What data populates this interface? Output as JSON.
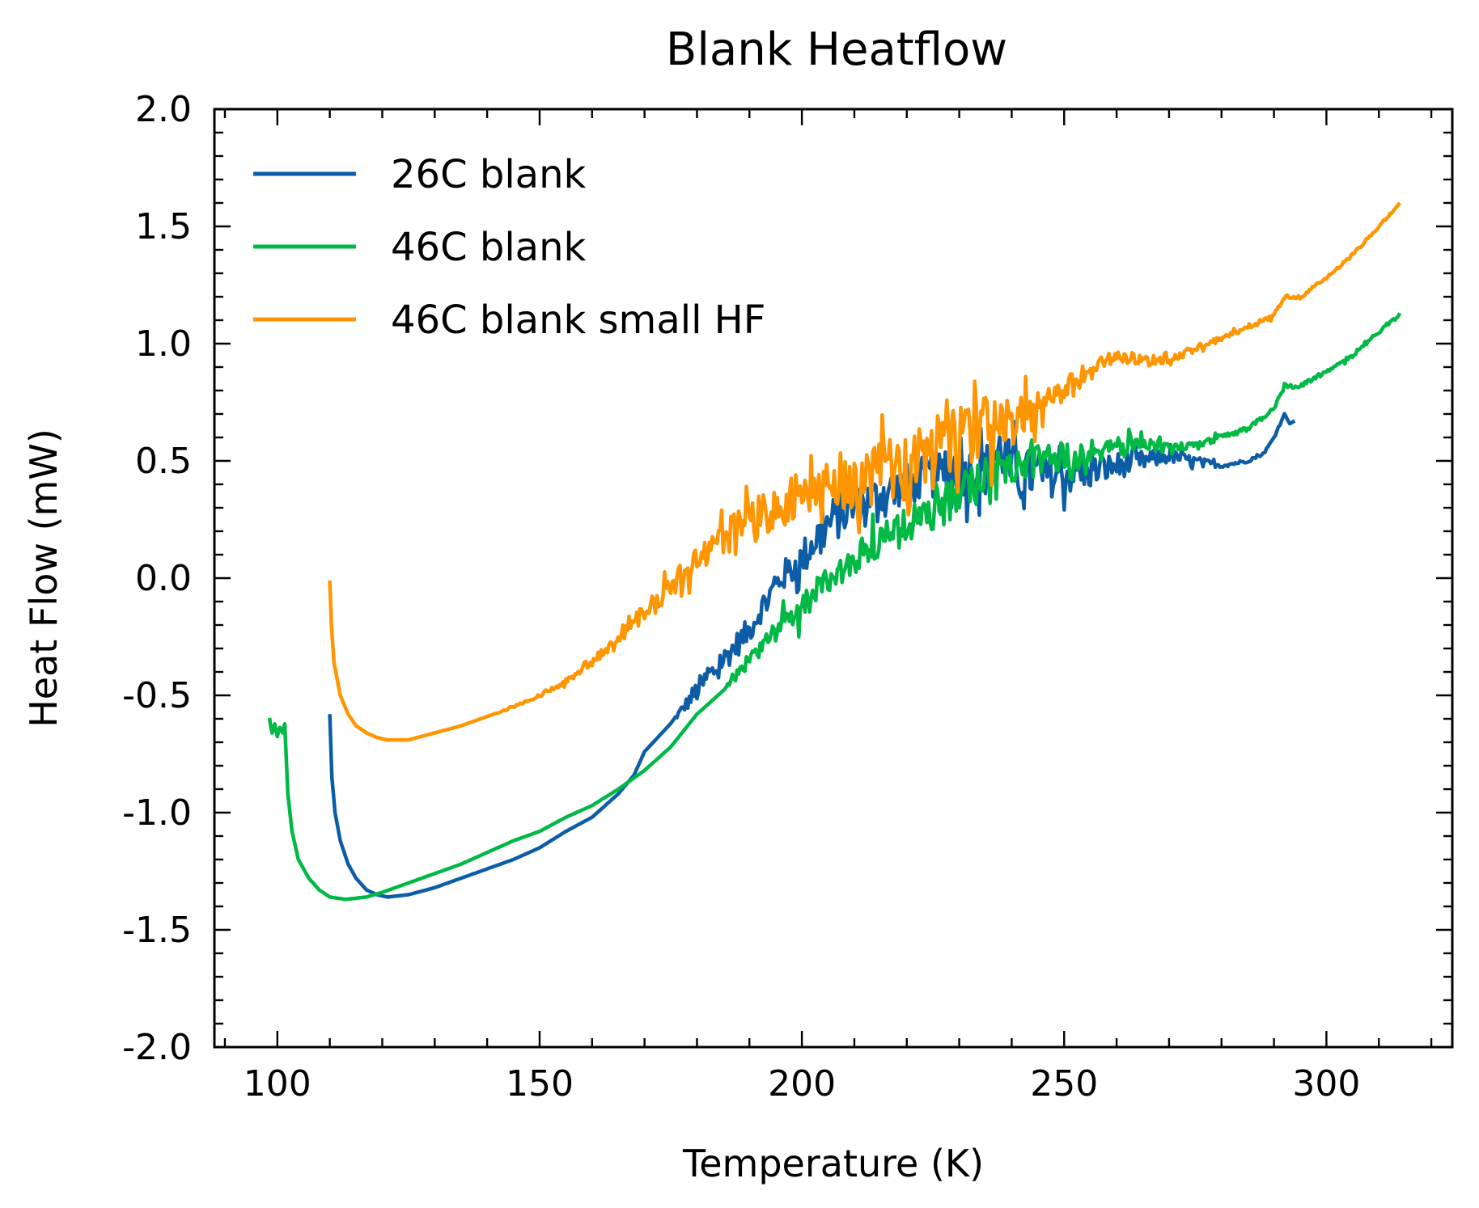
{
  "chart_data": {
    "type": "line",
    "title": "Blank Heatflow",
    "xlabel": "Temperature (K)",
    "ylabel": "Heat Flow (mW)",
    "xlim": [
      88,
      324
    ],
    "ylim": [
      -2.0,
      2.0
    ],
    "x_ticks": [
      100,
      150,
      200,
      250,
      300
    ],
    "x_tick_labels": [
      "100",
      "150",
      "200",
      "250",
      "300"
    ],
    "y_ticks": [
      -2.0,
      -1.5,
      -1.0,
      -0.5,
      0.0,
      0.5,
      1.0,
      1.5,
      2.0
    ],
    "y_tick_labels": [
      "-2.0",
      "-1.5",
      "-1.0",
      "-0.5",
      "0.0",
      "0.5",
      "1.0",
      "1.5",
      "2.0"
    ],
    "grid": false,
    "legend_position": "top-left",
    "series": [
      {
        "name": "26C blank",
        "color": "#0C5DA5",
        "noise": [
          [
            100,
            0.0
          ],
          [
            175,
            0.0
          ],
          [
            180,
            0.05
          ],
          [
            195,
            0.06
          ],
          [
            205,
            0.1
          ],
          [
            215,
            0.08
          ],
          [
            225,
            0.1
          ],
          [
            240,
            0.12
          ],
          [
            255,
            0.07
          ],
          [
            270,
            0.03
          ],
          [
            280,
            0.01
          ],
          [
            295,
            0.0
          ]
        ],
        "points": [
          [
            110.0,
            -0.58
          ],
          [
            110.4,
            -0.85
          ],
          [
            111.0,
            -1.0
          ],
          [
            112.0,
            -1.12
          ],
          [
            113.5,
            -1.22
          ],
          [
            115.0,
            -1.28
          ],
          [
            117.0,
            -1.33
          ],
          [
            119.0,
            -1.35
          ],
          [
            121.0,
            -1.36
          ],
          [
            125.0,
            -1.35
          ],
          [
            130.0,
            -1.32
          ],
          [
            135.0,
            -1.28
          ],
          [
            140.0,
            -1.24
          ],
          [
            145.0,
            -1.2
          ],
          [
            150.0,
            -1.15
          ],
          [
            155.0,
            -1.08
          ],
          [
            160.0,
            -1.02
          ],
          [
            165.0,
            -0.92
          ],
          [
            168.0,
            -0.84
          ],
          [
            170.0,
            -0.74
          ],
          [
            175.0,
            -0.62
          ],
          [
            180.0,
            -0.48
          ],
          [
            185.0,
            -0.35
          ],
          [
            190.0,
            -0.22
          ],
          [
            193.0,
            -0.1
          ],
          [
            196.0,
            0.0
          ],
          [
            200.0,
            0.08
          ],
          [
            203.0,
            0.18
          ],
          [
            206.0,
            0.25
          ],
          [
            210.0,
            0.3
          ],
          [
            215.0,
            0.36
          ],
          [
            220.0,
            0.4
          ],
          [
            225.0,
            0.44
          ],
          [
            230.0,
            0.45
          ],
          [
            235.0,
            0.46
          ],
          [
            238.0,
            0.55
          ],
          [
            240.0,
            0.45
          ],
          [
            245.0,
            0.44
          ],
          [
            250.0,
            0.44
          ],
          [
            255.0,
            0.45
          ],
          [
            260.0,
            0.48
          ],
          [
            265.0,
            0.5
          ],
          [
            270.0,
            0.52
          ],
          [
            275.0,
            0.5
          ],
          [
            280.0,
            0.48
          ],
          [
            285.0,
            0.5
          ],
          [
            288.0,
            0.53
          ],
          [
            290.0,
            0.6
          ],
          [
            292.0,
            0.7
          ],
          [
            293.0,
            0.66
          ],
          [
            294.0,
            0.67
          ]
        ]
      },
      {
        "name": "46C blank",
        "color": "#00B945",
        "noise": [
          [
            98,
            0.012
          ],
          [
            102,
            0.0
          ],
          [
            185,
            0.0
          ],
          [
            190,
            0.05
          ],
          [
            200,
            0.06
          ],
          [
            215,
            0.07
          ],
          [
            230,
            0.09
          ],
          [
            240,
            0.08
          ],
          [
            255,
            0.05
          ],
          [
            265,
            0.03
          ],
          [
            275,
            0.015
          ],
          [
            290,
            0.01
          ],
          [
            314,
            0.008
          ]
        ],
        "points": [
          [
            98.5,
            -0.6
          ],
          [
            99.0,
            -0.66
          ],
          [
            99.5,
            -0.62
          ],
          [
            100.0,
            -0.67
          ],
          [
            100.5,
            -0.64
          ],
          [
            101.0,
            -0.66
          ],
          [
            101.4,
            -0.62
          ],
          [
            101.6,
            -0.72
          ],
          [
            102.0,
            -0.92
          ],
          [
            102.8,
            -1.08
          ],
          [
            104.0,
            -1.2
          ],
          [
            106.0,
            -1.28
          ],
          [
            108.0,
            -1.33
          ],
          [
            110.0,
            -1.36
          ],
          [
            113.0,
            -1.37
          ],
          [
            117.0,
            -1.36
          ],
          [
            120.0,
            -1.34
          ],
          [
            125.0,
            -1.3
          ],
          [
            130.0,
            -1.26
          ],
          [
            135.0,
            -1.22
          ],
          [
            140.0,
            -1.17
          ],
          [
            145.0,
            -1.12
          ],
          [
            150.0,
            -1.08
          ],
          [
            155.0,
            -1.02
          ],
          [
            160.0,
            -0.97
          ],
          [
            165.0,
            -0.9
          ],
          [
            170.0,
            -0.82
          ],
          [
            175.0,
            -0.72
          ],
          [
            180.0,
            -0.58
          ],
          [
            185.0,
            -0.48
          ],
          [
            190.0,
            -0.36
          ],
          [
            195.0,
            -0.24
          ],
          [
            200.0,
            -0.12
          ],
          [
            205.0,
            0.0
          ],
          [
            210.0,
            0.08
          ],
          [
            215.0,
            0.16
          ],
          [
            220.0,
            0.22
          ],
          [
            225.0,
            0.28
          ],
          [
            230.0,
            0.36
          ],
          [
            235.0,
            0.44
          ],
          [
            240.0,
            0.48
          ],
          [
            245.0,
            0.5
          ],
          [
            250.0,
            0.52
          ],
          [
            255.0,
            0.54
          ],
          [
            260.0,
            0.56
          ],
          [
            265.0,
            0.58
          ],
          [
            270.0,
            0.55
          ],
          [
            275.0,
            0.57
          ],
          [
            280.0,
            0.6
          ],
          [
            285.0,
            0.64
          ],
          [
            290.0,
            0.72
          ],
          [
            292.0,
            0.82
          ],
          [
            295.0,
            0.82
          ],
          [
            300.0,
            0.88
          ],
          [
            305.0,
            0.95
          ],
          [
            310.0,
            1.05
          ],
          [
            314.0,
            1.13
          ]
        ]
      },
      {
        "name": "46C blank small HF",
        "color": "#FF9500",
        "noise": [
          [
            110,
            0.0
          ],
          [
            140,
            0.0
          ],
          [
            150,
            0.008
          ],
          [
            160,
            0.015
          ],
          [
            165,
            0.03
          ],
          [
            175,
            0.05
          ],
          [
            185,
            0.07
          ],
          [
            195,
            0.1
          ],
          [
            210,
            0.12
          ],
          [
            222,
            0.14
          ],
          [
            235,
            0.13
          ],
          [
            245,
            0.08
          ],
          [
            255,
            0.04
          ],
          [
            265,
            0.02
          ],
          [
            290,
            0.01
          ],
          [
            314,
            0.004
          ]
        ],
        "points": [
          [
            110.0,
            -0.01
          ],
          [
            110.3,
            -0.2
          ],
          [
            110.8,
            -0.36
          ],
          [
            112.0,
            -0.5
          ],
          [
            113.5,
            -0.58
          ],
          [
            115.0,
            -0.63
          ],
          [
            117.0,
            -0.66
          ],
          [
            119.0,
            -0.68
          ],
          [
            121.0,
            -0.69
          ],
          [
            125.0,
            -0.69
          ],
          [
            130.0,
            -0.66
          ],
          [
            135.0,
            -0.63
          ],
          [
            140.0,
            -0.59
          ],
          [
            145.0,
            -0.55
          ],
          [
            150.0,
            -0.5
          ],
          [
            155.0,
            -0.44
          ],
          [
            160.0,
            -0.36
          ],
          [
            165.0,
            -0.25
          ],
          [
            170.0,
            -0.15
          ],
          [
            175.0,
            -0.04
          ],
          [
            180.0,
            0.08
          ],
          [
            185.0,
            0.17
          ],
          [
            190.0,
            0.24
          ],
          [
            195.0,
            0.3
          ],
          [
            200.0,
            0.35
          ],
          [
            205.0,
            0.38
          ],
          [
            210.0,
            0.4
          ],
          [
            215.0,
            0.45
          ],
          [
            220.0,
            0.5
          ],
          [
            225.0,
            0.55
          ],
          [
            230.0,
            0.6
          ],
          [
            235.0,
            0.64
          ],
          [
            240.0,
            0.66
          ],
          [
            245.0,
            0.7
          ],
          [
            250.0,
            0.8
          ],
          [
            255.0,
            0.88
          ],
          [
            260.0,
            0.95
          ],
          [
            265.0,
            0.93
          ],
          [
            270.0,
            0.93
          ],
          [
            275.0,
            0.98
          ],
          [
            280.0,
            1.02
          ],
          [
            285.0,
            1.07
          ],
          [
            290.0,
            1.12
          ],
          [
            292.0,
            1.2
          ],
          [
            295.0,
            1.2
          ],
          [
            300.0,
            1.28
          ],
          [
            305.0,
            1.38
          ],
          [
            310.0,
            1.5
          ],
          [
            314.0,
            1.6
          ]
        ]
      }
    ]
  }
}
